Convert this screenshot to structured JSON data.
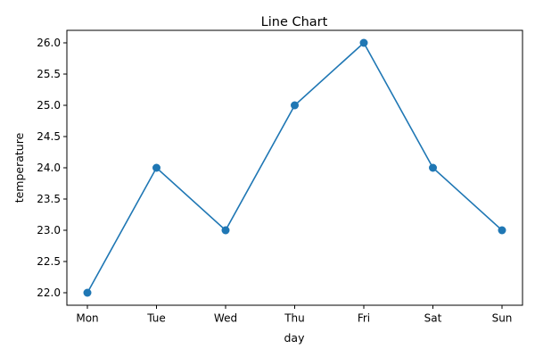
{
  "chart_data": {
    "type": "line",
    "title": "Line Chart",
    "xlabel": "day",
    "ylabel": "temperature",
    "categories": [
      "Mon",
      "Tue",
      "Wed",
      "Thu",
      "Fri",
      "Sat",
      "Sun"
    ],
    "series": [
      {
        "values": [
          22,
          24,
          23,
          25,
          26,
          24,
          23
        ],
        "color": "#1f77b4",
        "marker": "circle"
      }
    ],
    "ylim": [
      21.8,
      26.2
    ],
    "yticks": [
      "22.0",
      "22.5",
      "23.0",
      "23.5",
      "24.0",
      "24.5",
      "25.0",
      "25.5",
      "26.0"
    ],
    "grid": false,
    "legend": "none"
  }
}
